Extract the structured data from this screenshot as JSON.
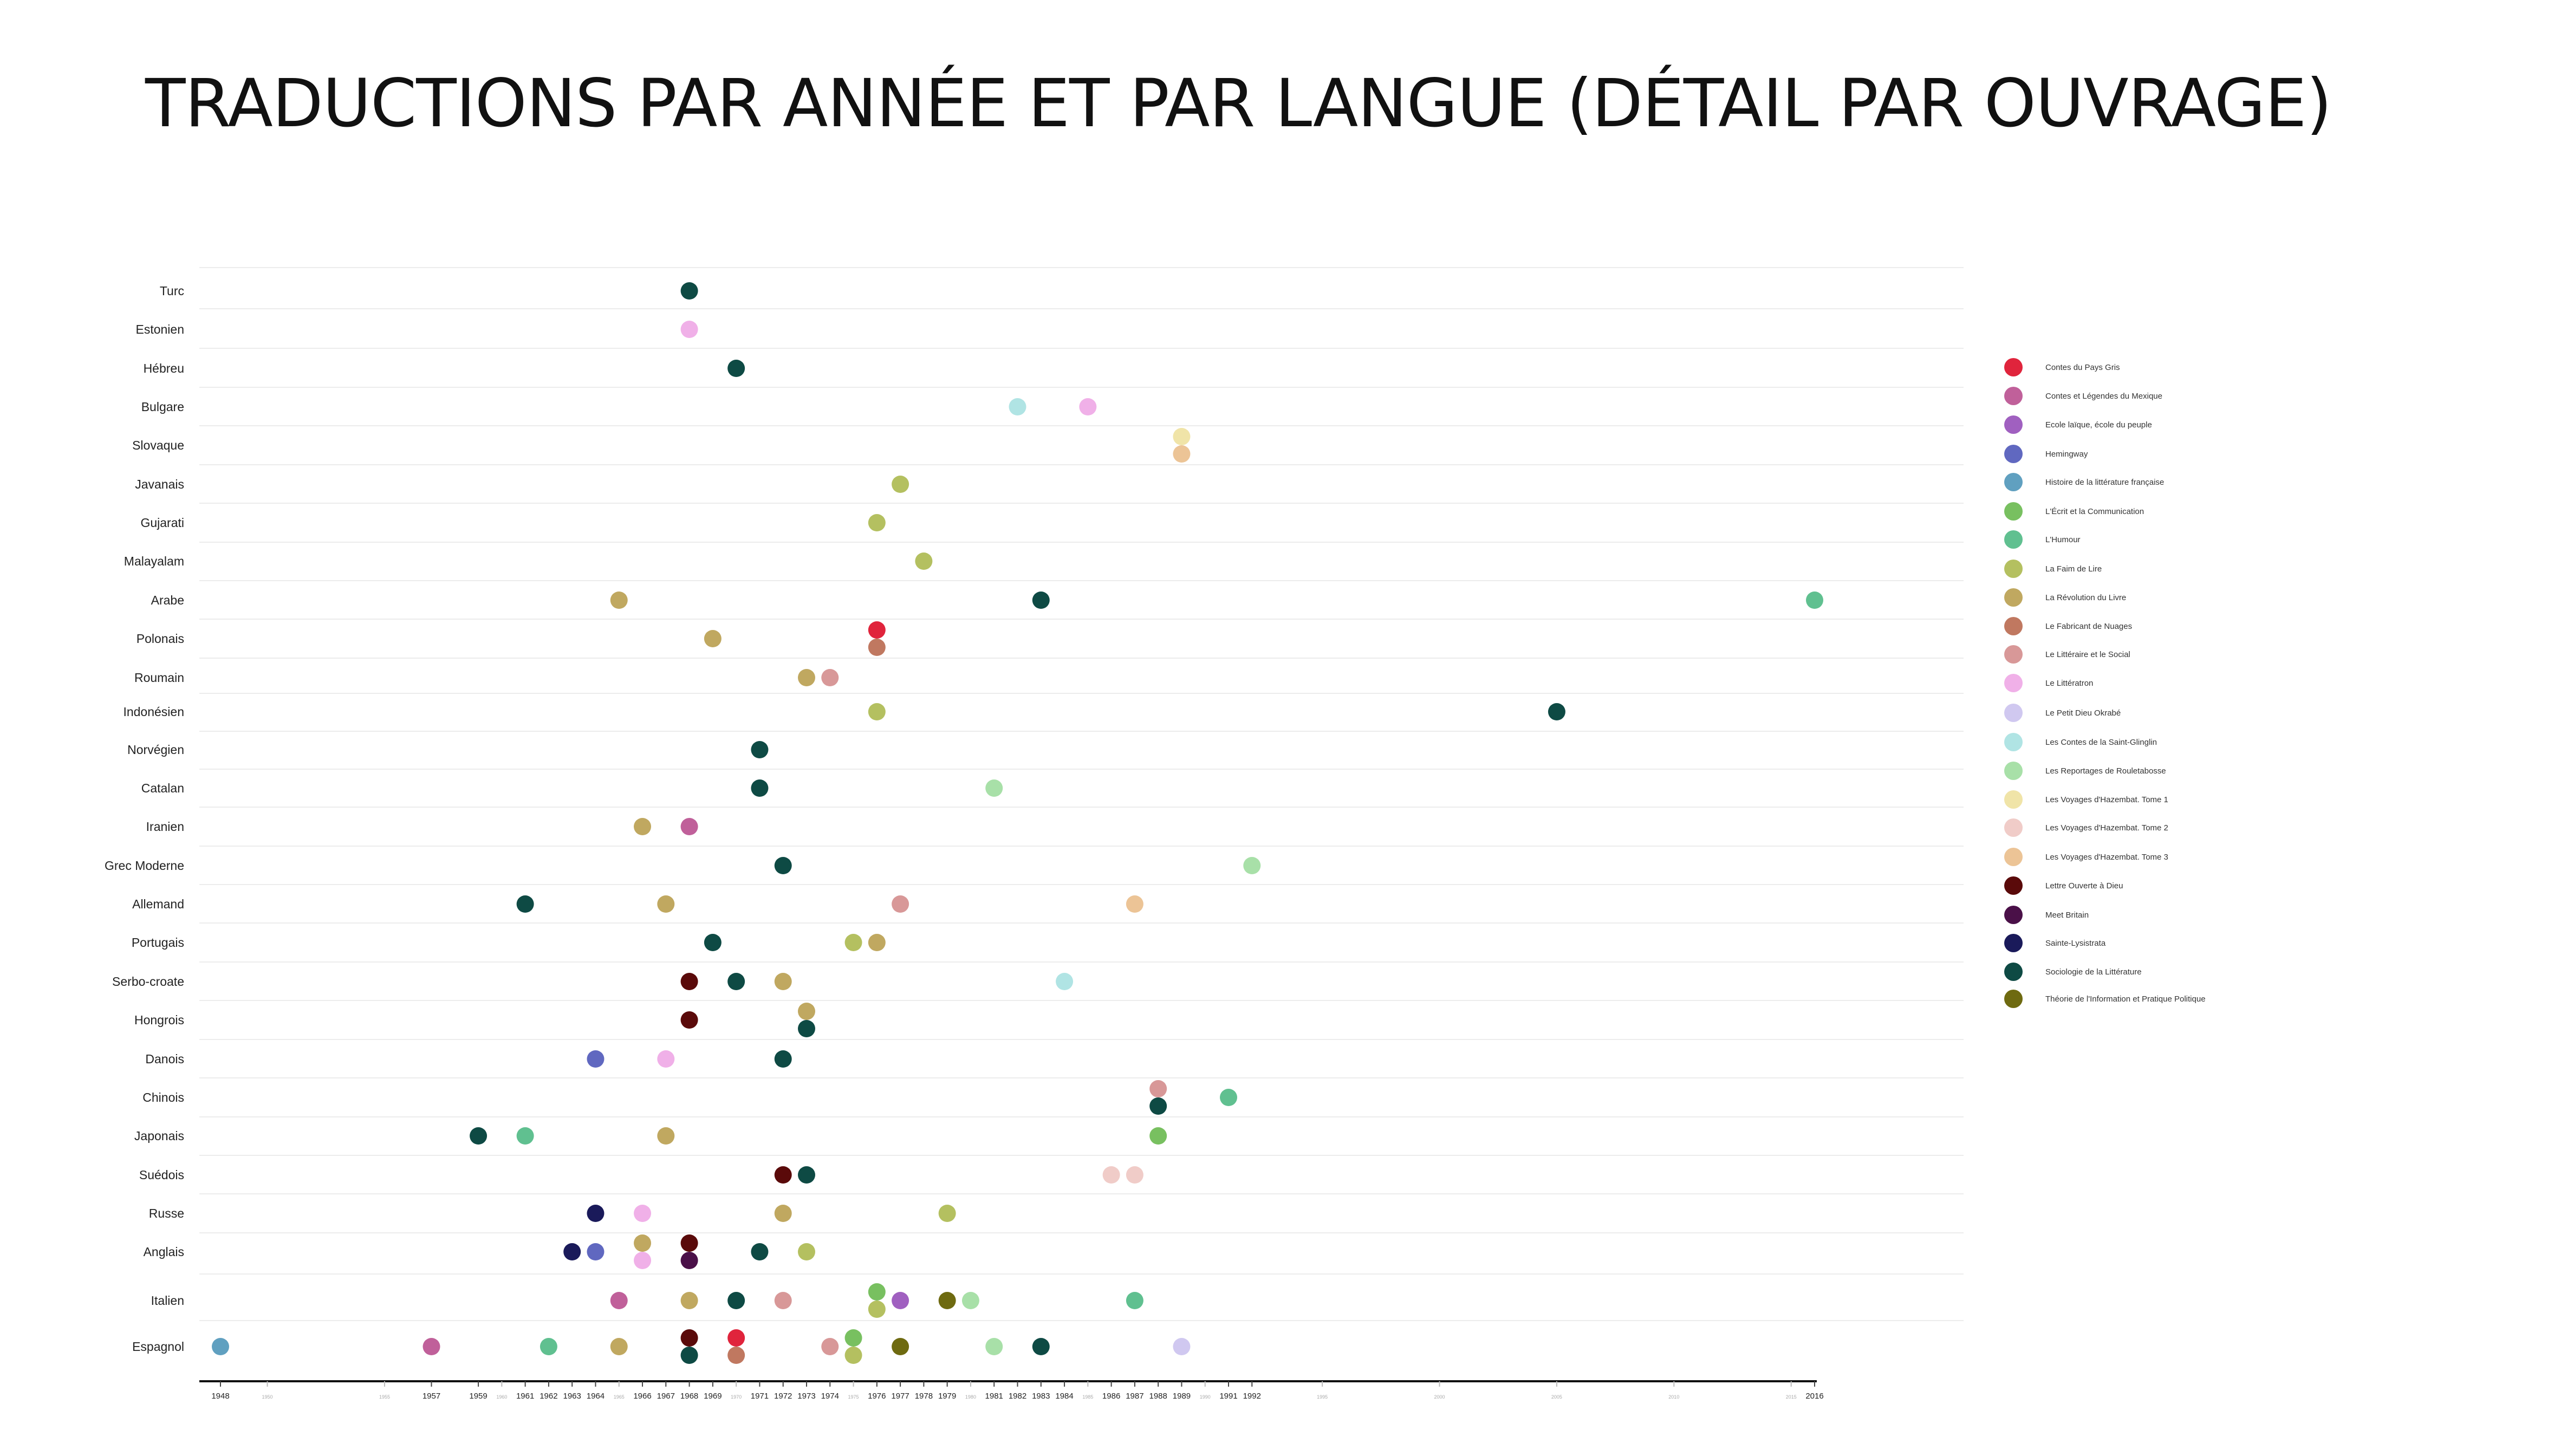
{
  "title": "TRADUCTIONS PAR ANNÉE ET PAR LANGUE (DÉTAIL PAR OUVRAGE)",
  "chart_data": {
    "type": "scatter",
    "title": "TRADUCTIONS PAR ANNÉE ET PAR LANGUE (DÉTAIL PAR OUVRAGE)",
    "xlabel": "",
    "ylabel": "",
    "xlim": [
      1948,
      2016
    ],
    "x_ticks_major": [
      1948,
      1957,
      1959,
      1961,
      1962,
      1963,
      1964,
      1966,
      1967,
      1968,
      1969,
      1971,
      1972,
      1973,
      1974,
      1976,
      1977,
      1978,
      1979,
      1981,
      1982,
      1983,
      1984,
      1986,
      1987,
      1988,
      1989,
      1991,
      1992,
      2016
    ],
    "x_ticks_minor": [
      1950,
      1955,
      1960,
      1965,
      1970,
      1975,
      1980,
      1985,
      1990,
      1995,
      2000,
      2005,
      2010,
      2015
    ],
    "grid": true,
    "legend_position": "right",
    "categories": [
      "Turc",
      "Estonien",
      "Hébreu",
      "Bulgare",
      "Slovaque",
      "Javanais",
      "Gujarati",
      "Malayalam",
      "Arabe",
      "Polonais",
      "Roumain",
      "Indonésien",
      "Norvégien",
      "Catalan",
      "Iranien",
      "Grec Moderne",
      "Allemand",
      "Portugais",
      "Serbo-croate",
      "Hongrois",
      "Danois",
      "Chinois",
      "Japonais",
      "Suédois",
      "Russe",
      "Anglais",
      "Italien",
      "Espagnol"
    ],
    "series": [
      {
        "name": "Contes du Pays Gris",
        "color": "#e0243c",
        "points": [
          {
            "x": 1976,
            "y": "Polonais"
          },
          {
            "x": 1970,
            "y": "Espagnol"
          }
        ]
      },
      {
        "name": "Contes et Légendes du Mexique",
        "color": "#c0609a",
        "points": [
          {
            "x": 1968,
            "y": "Iranien"
          },
          {
            "x": 1965,
            "y": "Italien"
          },
          {
            "x": 1957,
            "y": "Espagnol"
          }
        ]
      },
      {
        "name": "Ecole laïque, école du peuple",
        "color": "#a060c0",
        "points": [
          {
            "x": 1977,
            "y": "Italien"
          }
        ]
      },
      {
        "name": "Hemingway",
        "color": "#6068c0",
        "points": [
          {
            "x": 1964,
            "y": "Danois"
          },
          {
            "x": 1964,
            "y": "Anglais"
          }
        ]
      },
      {
        "name": "Histoire de la littérature française",
        "color": "#60a0c0",
        "points": [
          {
            "x": 1948,
            "y": "Espagnol"
          }
        ]
      },
      {
        "name": "L'Écrit et la Communication",
        "color": "#78c060",
        "points": [
          {
            "x": 1988,
            "y": "Japonais"
          },
          {
            "x": 1976,
            "y": "Italien"
          },
          {
            "x": 1975,
            "y": "Espagnol"
          }
        ]
      },
      {
        "name": "L'Humour",
        "color": "#60c090",
        "points": [
          {
            "x": 2016,
            "y": "Arabe"
          },
          {
            "x": 1991,
            "y": "Chinois"
          },
          {
            "x": 1961,
            "y": "Japonais"
          },
          {
            "x": 1987,
            "y": "Italien"
          },
          {
            "x": 1962,
            "y": "Espagnol"
          }
        ]
      },
      {
        "name": "La Faim de Lire",
        "color": "#b4c060",
        "points": [
          {
            "x": 1977,
            "y": "Javanais"
          },
          {
            "x": 1976,
            "y": "Gujarati"
          },
          {
            "x": 1978,
            "y": "Malayalam"
          },
          {
            "x": 1976,
            "y": "Indonésien"
          },
          {
            "x": 1975,
            "y": "Portugais"
          },
          {
            "x": 1979,
            "y": "Russe"
          },
          {
            "x": 1973,
            "y": "Anglais"
          },
          {
            "x": 1976,
            "y": "Italien"
          },
          {
            "x": 1975,
            "y": "Espagnol"
          }
        ]
      },
      {
        "name": "La Révolution du Livre",
        "color": "#c0a860",
        "points": [
          {
            "x": 1965,
            "y": "Arabe"
          },
          {
            "x": 1969,
            "y": "Polonais"
          },
          {
            "x": 1973,
            "y": "Roumain"
          },
          {
            "x": 1966,
            "y": "Iranien"
          },
          {
            "x": 1967,
            "y": "Allemand"
          },
          {
            "x": 1976,
            "y": "Portugais"
          },
          {
            "x": 1972,
            "y": "Serbo-croate"
          },
          {
            "x": 1973,
            "y": "Hongrois"
          },
          {
            "x": 1967,
            "y": "Japonais"
          },
          {
            "x": 1972,
            "y": "Russe"
          },
          {
            "x": 1966,
            "y": "Anglais"
          },
          {
            "x": 1968,
            "y": "Italien"
          },
          {
            "x": 1965,
            "y": "Espagnol"
          }
        ]
      },
      {
        "name": "Le Fabricant de Nuages",
        "color": "#c07860",
        "points": [
          {
            "x": 1976,
            "y": "Polonais"
          },
          {
            "x": 1970,
            "y": "Espagnol"
          }
        ]
      },
      {
        "name": "Le Littéraire et le Social",
        "color": "#d89898",
        "points": [
          {
            "x": 1974,
            "y": "Roumain"
          },
          {
            "x": 1977,
            "y": "Allemand"
          },
          {
            "x": 1988,
            "y": "Chinois"
          },
          {
            "x": 1972,
            "y": "Italien"
          },
          {
            "x": 1974,
            "y": "Espagnol"
          }
        ]
      },
      {
        "name": "Le Littératron",
        "color": "#f0b0e8",
        "points": [
          {
            "x": 1968,
            "y": "Estonien"
          },
          {
            "x": 1985,
            "y": "Bulgare"
          },
          {
            "x": 1967,
            "y": "Danois"
          },
          {
            "x": 1966,
            "y": "Russe"
          },
          {
            "x": 1966,
            "y": "Anglais"
          }
        ]
      },
      {
        "name": "Le Petit Dieu Okrabé",
        "color": "#d0c8f0",
        "points": [
          {
            "x": 1989,
            "y": "Espagnol"
          }
        ]
      },
      {
        "name": "Les Contes de la Saint-Glinglin",
        "color": "#b0e4e4",
        "points": [
          {
            "x": 1982,
            "y": "Bulgare"
          },
          {
            "x": 1984,
            "y": "Serbo-croate"
          }
        ]
      },
      {
        "name": "Les Reportages de Rouletabosse",
        "color": "#a8e0a8",
        "points": [
          {
            "x": 1981,
            "y": "Catalan"
          },
          {
            "x": 1992,
            "y": "Grec Moderne"
          },
          {
            "x": 1980,
            "y": "Italien"
          },
          {
            "x": 1981,
            "y": "Espagnol"
          }
        ]
      },
      {
        "name": "Les Voyages d'Hazembat. Tome 1",
        "color": "#f0e4a8",
        "points": [
          {
            "x": 1989,
            "y": "Slovaque"
          }
        ]
      },
      {
        "name": "Les Voyages d'Hazembat. Tome 2",
        "color": "#f0ccc8",
        "points": [
          {
            "x": 1986,
            "y": "Suédois"
          },
          {
            "x": 1987,
            "y": "Suédois"
          }
        ]
      },
      {
        "name": "Les Voyages d'Hazembat. Tome 3",
        "color": "#ecc496",
        "points": [
          {
            "x": 1989,
            "y": "Slovaque"
          },
          {
            "x": 1987,
            "y": "Allemand"
          }
        ]
      },
      {
        "name": "Lettre Ouverte à Dieu",
        "color": "#5a0a0a",
        "points": [
          {
            "x": 1968,
            "y": "Serbo-croate"
          },
          {
            "x": 1968,
            "y": "Hongrois"
          },
          {
            "x": 1972,
            "y": "Suédois"
          },
          {
            "x": 1968,
            "y": "Anglais"
          },
          {
            "x": 1968,
            "y": "Espagnol"
          }
        ]
      },
      {
        "name": "Meet Britain",
        "color": "#4a1048",
        "points": [
          {
            "x": 1968,
            "y": "Anglais"
          }
        ]
      },
      {
        "name": "Sainte-Lysistrata",
        "color": "#1a1a5a",
        "points": [
          {
            "x": 1964,
            "y": "Russe"
          },
          {
            "x": 1963,
            "y": "Anglais"
          }
        ]
      },
      {
        "name": "Sociologie de la Littérature",
        "color": "#0e4a44",
        "points": [
          {
            "x": 1968,
            "y": "Turc"
          },
          {
            "x": 1970,
            "y": "Hébreu"
          },
          {
            "x": 1983,
            "y": "Arabe"
          },
          {
            "x": 2005,
            "y": "Indonésien"
          },
          {
            "x": 1971,
            "y": "Norvégien"
          },
          {
            "x": 1971,
            "y": "Catalan"
          },
          {
            "x": 1972,
            "y": "Grec Moderne"
          },
          {
            "x": 1961,
            "y": "Allemand"
          },
          {
            "x": 1969,
            "y": "Portugais"
          },
          {
            "x": 1970,
            "y": "Serbo-croate"
          },
          {
            "x": 1973,
            "y": "Hongrois"
          },
          {
            "x": 1972,
            "y": "Danois"
          },
          {
            "x": 1988,
            "y": "Chinois"
          },
          {
            "x": 1959,
            "y": "Japonais"
          },
          {
            "x": 1973,
            "y": "Suédois"
          },
          {
            "x": 1971,
            "y": "Anglais"
          },
          {
            "x": 1970,
            "y": "Italien"
          },
          {
            "x": 1968,
            "y": "Espagnol"
          },
          {
            "x": 1983,
            "y": "Espagnol"
          }
        ]
      },
      {
        "name": "Théorie de l'Information et Pratique Politique",
        "color": "#6e6a10",
        "points": [
          {
            "x": 1979,
            "y": "Italien"
          },
          {
            "x": 1977,
            "y": "Espagnol"
          }
        ]
      }
    ]
  }
}
